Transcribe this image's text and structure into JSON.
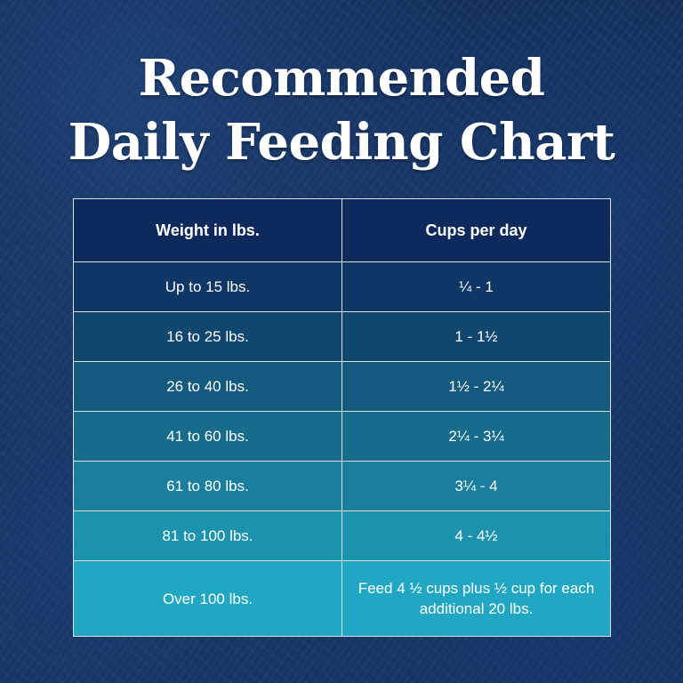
{
  "title": {
    "line1": "Recommended",
    "line2": "Daily Feeding Chart"
  },
  "table": {
    "headers": {
      "weight": "Weight in lbs.",
      "cups": "Cups per day"
    },
    "header_color": "#0e2a5c",
    "rows": [
      {
        "weight": "Up to 15 lbs.",
        "cups": "¼ - 1",
        "color": "#0f3766"
      },
      {
        "weight": "16 to 25 lbs.",
        "cups": "1 - 1½",
        "color": "#11476f"
      },
      {
        "weight": "26 to 40 lbs.",
        "cups": "1½ - 2¼",
        "color": "#145a7e"
      },
      {
        "weight": "41 to 60 lbs.",
        "cups": "2¼ - 3¼",
        "color": "#176c8c"
      },
      {
        "weight": "61 to 80 lbs.",
        "cups": "3¼ - 4",
        "color": "#1a7f9c"
      },
      {
        "weight": "81 to 100 lbs.",
        "cups": "4 - 4½",
        "color": "#1c92ae"
      },
      {
        "weight": "Over 100 lbs.",
        "cups": "Feed 4 ½ cups plus ½ cup for each additional 20 lbs.",
        "color": "#21a7c4"
      }
    ]
  }
}
